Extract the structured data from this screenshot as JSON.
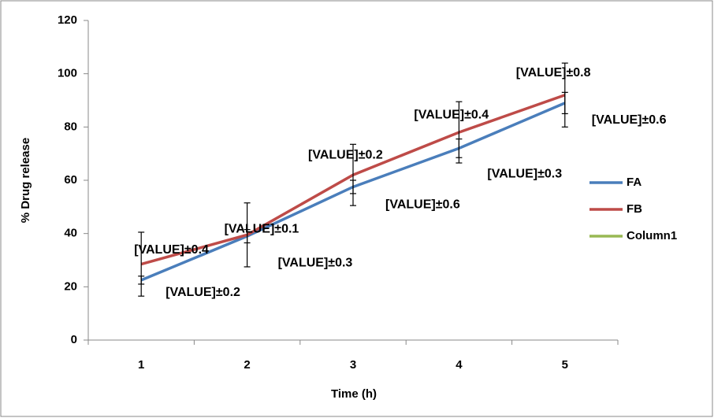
{
  "chart_data": {
    "type": "line",
    "x_label": "Time (h)",
    "y_label": "% Drug release",
    "categories": [
      "1",
      "2",
      "3",
      "4",
      "5"
    ],
    "ylim": [
      0,
      120
    ],
    "yticks": [
      0,
      20,
      40,
      60,
      80,
      100,
      120
    ],
    "legend": "right",
    "series": [
      {
        "name": "FA",
        "color": "#4a7ebb",
        "values": [
          22.5,
          39,
          57.5,
          72,
          89
        ],
        "errors": [
          1.5,
          2.5,
          2.5,
          3.5,
          4
        ],
        "labels": [
          "[VALUE]±0.2",
          "[VALUE]±0.3",
          "[VALUE]±0.6",
          "[VALUE]±0.3",
          "[VALUE]±0.6"
        ]
      },
      {
        "name": "FB",
        "color": "#be4b48",
        "values": [
          28.5,
          39.5,
          62,
          78,
          92
        ],
        "errors": [
          12,
          12,
          11.5,
          11.5,
          12
        ],
        "labels": [
          "[VALUE]±0.4",
          "[VALUE]±0.1",
          "[VALUE]±0.2",
          "[VALUE]±0.4",
          "[VALUE]±0.8"
        ]
      },
      {
        "name": "Column1",
        "color": "#98b954",
        "values": [
          null,
          null,
          null,
          null,
          null
        ]
      }
    ]
  }
}
